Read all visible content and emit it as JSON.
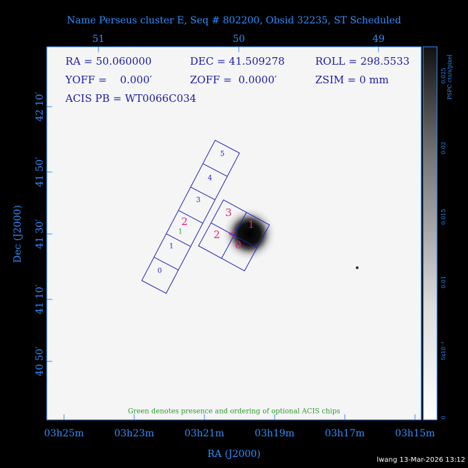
{
  "title": "Name Perseus cluster E, Seq # 802200, Obsid 32235, ST Scheduled",
  "header": {
    "ra": "RA = 50.060000",
    "dec": "DEC = 41.509278",
    "roll": "ROLL = 298.5533",
    "yoff": "YOFF =    0.000′",
    "zoff": "ZOFF =  0.0000′",
    "zsim": "ZSIM = 0 mm",
    "acis": "ACIS PB = WT0066C034"
  },
  "axes": {
    "top_ticks": [
      "51",
      "50",
      "49"
    ],
    "bottom_ticks": [
      "03h25m",
      "03h23m",
      "03h21m",
      "03h19m",
      "03h17m",
      "03h15m"
    ],
    "left_ticks": [
      "42 10′",
      "41 50′",
      "41 30′",
      "41 10′",
      "40 50′"
    ],
    "x_label": "RA (J2000)",
    "y_label": "Dec (J2000)"
  },
  "chips": {
    "acis_s": [
      "0",
      "1",
      "2",
      "3",
      "4",
      "5"
    ],
    "acis_i": [
      "0",
      "1",
      "2",
      "3"
    ],
    "optional": "1"
  },
  "note": "Green denotes presence and ordering of optional ACIS chips",
  "colorbar": {
    "label": "PSPC cts/s/pixel",
    "ticks": [
      "0.025",
      "0.02",
      "0.015",
      "0.01",
      "5x10⁻³",
      "0"
    ]
  },
  "footer": "lwang 13-Mar-2026 13:12"
}
